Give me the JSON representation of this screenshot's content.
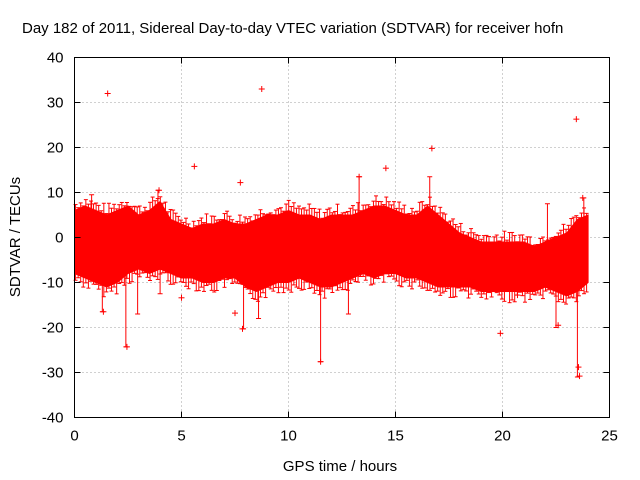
{
  "chart_data": {
    "type": "scatter",
    "title": "Day 182 of 2011, Sidereal Day-to-day VTEC variation (SDTVAR) for receiver hofn",
    "xlabel": "GPS time / hours",
    "ylabel": "SDTVAR / TECUs",
    "xlim": [
      0,
      25
    ],
    "ylim": [
      -40,
      40
    ],
    "xticks": [
      0,
      5,
      10,
      15,
      20,
      25
    ],
    "yticks": [
      -40,
      -30,
      -20,
      -10,
      0,
      10,
      20,
      30,
      40
    ],
    "grid": true,
    "series": [
      {
        "name": "SDTVAR",
        "color": "#ff0000",
        "marker": "+",
        "band_x": [
          0.0,
          0.5,
          1.0,
          1.5,
          2.0,
          2.5,
          3.0,
          3.5,
          4.0,
          4.5,
          5.0,
          5.5,
          6.0,
          6.5,
          7.0,
          7.5,
          8.0,
          8.5,
          9.0,
          9.5,
          10.0,
          10.5,
          11.0,
          11.5,
          12.0,
          12.5,
          13.0,
          13.5,
          14.0,
          14.5,
          15.0,
          15.5,
          16.0,
          16.5,
          17.0,
          17.5,
          18.0,
          18.5,
          19.0,
          19.5,
          20.0,
          20.5,
          21.0,
          21.5,
          22.0,
          22.5,
          23.0,
          23.5,
          24.0
        ],
        "band_upper": [
          6,
          7,
          6,
          5,
          6,
          7,
          5,
          6,
          8,
          4,
          3,
          2,
          3,
          3,
          4,
          3,
          3,
          4,
          5,
          5,
          6,
          5,
          5,
          4,
          5,
          5,
          5,
          6,
          7,
          7,
          6,
          5,
          5,
          7,
          5,
          3,
          1,
          0,
          -1,
          -1,
          -1,
          -1,
          -1,
          -2,
          -1,
          0,
          1,
          4,
          5
        ],
        "band_lower": [
          -8,
          -9,
          -10,
          -11,
          -10,
          -8,
          -7,
          -8,
          -7,
          -8,
          -9,
          -9,
          -10,
          -10,
          -9,
          -9,
          -11,
          -12,
          -11,
          -10,
          -10,
          -9,
          -10,
          -11,
          -11,
          -10,
          -9,
          -8,
          -9,
          -8,
          -8,
          -9,
          -9,
          -10,
          -11,
          -11,
          -11,
          -11,
          -12,
          -12,
          -12,
          -12,
          -12,
          -12,
          -11,
          -12,
          -13,
          -12,
          -10
        ],
        "outliers": [
          {
            "x": 1.55,
            "y": 32
          },
          {
            "x": 8.75,
            "y": 33
          },
          {
            "x": 23.45,
            "y": 26.3
          },
          {
            "x": 5.6,
            "y": 15.8
          },
          {
            "x": 14.55,
            "y": 15.4
          },
          {
            "x": 16.7,
            "y": 19.8
          },
          {
            "x": 19.9,
            "y": -21.3
          },
          {
            "x": 2.45,
            "y": -24.3
          },
          {
            "x": 11.5,
            "y": -27.6
          },
          {
            "x": 23.55,
            "y": -28.8
          },
          {
            "x": 23.6,
            "y": -30.8
          },
          {
            "x": 7.85,
            "y": -20.3
          },
          {
            "x": 7.5,
            "y": -16.8
          },
          {
            "x": 1.35,
            "y": -16.5
          },
          {
            "x": 3.95,
            "y": 10.5
          },
          {
            "x": 7.75,
            "y": 12.2
          },
          {
            "x": 13.3,
            "y": 13.5
          },
          {
            "x": 23.75,
            "y": 8.8
          },
          {
            "x": 5.0,
            "y": -13.4
          },
          {
            "x": 20.7,
            "y": -12.8
          },
          {
            "x": 22.6,
            "y": -19.5
          }
        ],
        "spikes": [
          {
            "x": 0.8,
            "y0": -6,
            "y1": 9.5
          },
          {
            "x": 1.3,
            "y0": -5,
            "y1": -16.5
          },
          {
            "x": 2.4,
            "y0": -5,
            "y1": -24.3
          },
          {
            "x": 2.95,
            "y0": -5,
            "y1": -17
          },
          {
            "x": 3.9,
            "y0": -2,
            "y1": 10.5
          },
          {
            "x": 4.0,
            "y0": -5,
            "y1": -12.5
          },
          {
            "x": 7.9,
            "y0": -6,
            "y1": -20.3
          },
          {
            "x": 8.6,
            "y0": -5,
            "y1": -18
          },
          {
            "x": 11.5,
            "y0": -8,
            "y1": -27.6
          },
          {
            "x": 12.8,
            "y0": -5,
            "y1": -17
          },
          {
            "x": 13.3,
            "y0": 0,
            "y1": 13.5
          },
          {
            "x": 16.6,
            "y0": 2,
            "y1": 13.5
          },
          {
            "x": 22.1,
            "y0": -5,
            "y1": 7.5
          },
          {
            "x": 22.5,
            "y0": -8,
            "y1": -20
          },
          {
            "x": 23.5,
            "y0": -5,
            "y1": -31
          },
          {
            "x": 23.8,
            "y0": -2,
            "y1": 8.8
          }
        ]
      }
    ]
  }
}
